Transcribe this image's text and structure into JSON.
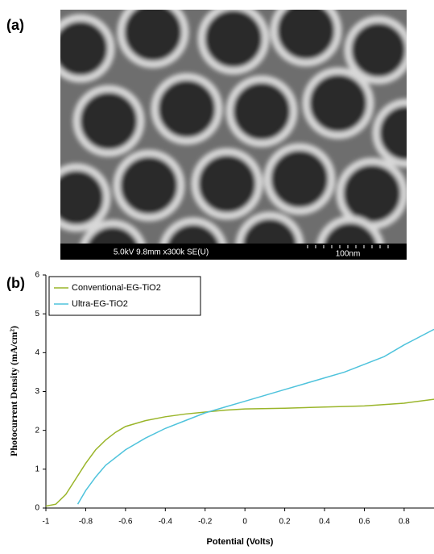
{
  "image": {
    "label": "(a)",
    "caption": "5.0kV 9.8mm x300k SE(U)",
    "scale_label": "100nm"
  },
  "chart_data": {
    "type": "line",
    "label": "(b)",
    "x_label": "Potential (Volts)",
    "y_label": "Photocurrent Density (mA/cm²)",
    "xlim": [
      -1,
      0.95
    ],
    "ylim": [
      0,
      6
    ],
    "xticks": [
      -1,
      -0.8,
      -0.6,
      -0.4,
      -0.2,
      0,
      0.2,
      0.4,
      0.6,
      0.8
    ],
    "yticks": [
      0,
      1,
      2,
      3,
      4,
      5,
      6
    ],
    "legend": "upper left",
    "series": [
      {
        "name": "Conventional-EG-TiO2",
        "color": "#9ab52a",
        "x": [
          -1,
          -0.95,
          -0.9,
          -0.85,
          -0.8,
          -0.75,
          -0.7,
          -0.65,
          -0.6,
          -0.5,
          -0.4,
          -0.3,
          -0.2,
          -0.1,
          0,
          0.2,
          0.4,
          0.6,
          0.8,
          0.95
        ],
        "values": [
          0.05,
          0.1,
          0.35,
          0.75,
          1.15,
          1.5,
          1.75,
          1.95,
          2.1,
          2.25,
          2.35,
          2.42,
          2.47,
          2.52,
          2.55,
          2.57,
          2.6,
          2.63,
          2.7,
          2.8
        ]
      },
      {
        "name": "Ultra-EG-TiO2",
        "color": "#4fc3dc",
        "x": [
          -0.84,
          -0.8,
          -0.75,
          -0.7,
          -0.6,
          -0.5,
          -0.4,
          -0.3,
          -0.2,
          -0.1,
          0,
          0.1,
          0.2,
          0.3,
          0.4,
          0.5,
          0.6,
          0.7,
          0.8,
          0.95
        ],
        "values": [
          0.1,
          0.45,
          0.8,
          1.1,
          1.5,
          1.8,
          2.05,
          2.25,
          2.45,
          2.6,
          2.75,
          2.9,
          3.05,
          3.2,
          3.35,
          3.5,
          3.7,
          3.9,
          4.2,
          4.6
        ]
      }
    ]
  }
}
